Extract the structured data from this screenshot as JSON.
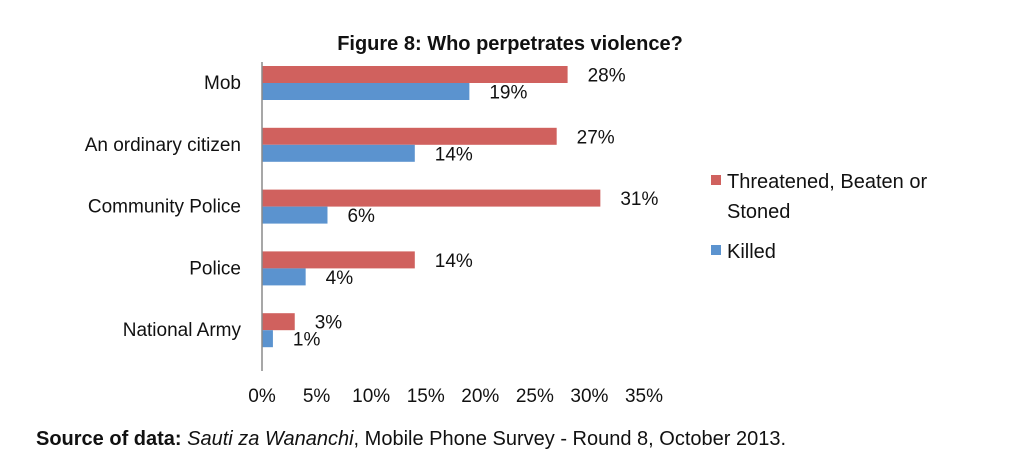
{
  "chart_data": {
    "type": "bar",
    "orientation": "horizontal",
    "title": "Figure 8: Who perpetrates violence?",
    "categories": [
      "Mob",
      "An ordinary citizen",
      "Community Police",
      "Police",
      "National Army"
    ],
    "series": [
      {
        "name": "Threatened, Beaten or Stoned",
        "color": "#d0615e",
        "values": [
          28,
          27,
          31,
          14,
          3
        ]
      },
      {
        "name": "Killed",
        "color": "#5b93cf",
        "values": [
          19,
          14,
          6,
          4,
          1
        ]
      }
    ],
    "value_suffix": "%",
    "xlim": [
      0,
      35
    ],
    "xticks": [
      0,
      5,
      10,
      15,
      20,
      25,
      30,
      35
    ],
    "tick_labels": [
      "0%",
      "5%",
      "10%",
      "15%",
      "20%",
      "25%",
      "30%",
      "35%"
    ],
    "legend_lines": [
      [
        "Threatened, Beaten or",
        "Stoned"
      ],
      [
        "Killed"
      ]
    ],
    "grid": false,
    "legend_position": "right"
  },
  "source": {
    "label": "Source of data:",
    "name": "Sauti za Wananchi",
    "rest": ", Mobile Phone Survey - Round 8, October 2013."
  }
}
